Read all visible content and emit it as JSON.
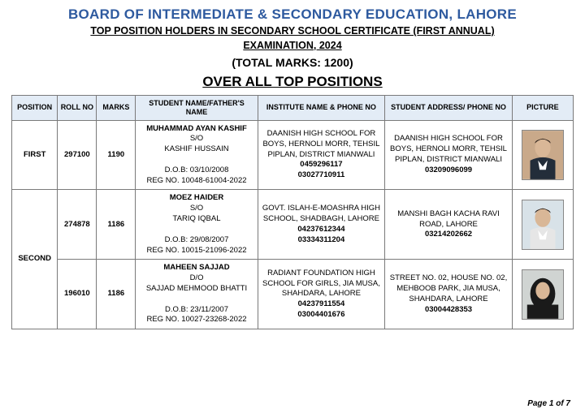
{
  "header": {
    "board_title": "BOARD OF INTERMEDIATE & SECONDARY EDUCATION, LAHORE",
    "sub_title_line1": "TOP POSITION HOLDERS IN SECONDARY SCHOOL CERTIFICATE (FIRST ANNUAL)",
    "sub_title_line2": "EXAMINATION, 2024",
    "total_marks": "(TOTAL MARKS: 1200)",
    "section_title": "OVER ALL TOP POSITIONS"
  },
  "table": {
    "headers": {
      "position": "POSITION",
      "roll_no": "ROLL NO",
      "marks": "MARKS",
      "name": "STUDENT NAME/FATHER'S NAME",
      "institute": "INSTITUTE NAME & PHONE NO",
      "address": "STUDENT ADDRESS/ PHONE NO",
      "picture": "PICTURE"
    },
    "rows": [
      {
        "position": "FIRST",
        "roll_no": "297100",
        "marks": "1190",
        "student_name": "MUHAMMAD AYAN KASHIF",
        "relation": "S/O",
        "father_name": "KASHIF HUSSAIN",
        "dob": "D.O.B: 03/10/2008",
        "reg": "REG NO. 10048-61004-2022",
        "institute": "DAANISH HIGH SCHOOL FOR BOYS, HERNOLI MORR, TEHSIL PIPLAN, DISTRICT MIANWALI",
        "inst_phone1": "0459296117",
        "inst_phone2": "03027710911",
        "address": "DAANISH HIGH SCHOOL FOR BOYS, HERNOLI MORR, TEHSIL PIPLAN, DISTRICT MIANWALI",
        "addr_phone": "03209096099",
        "photo_bg": "#c9a98a",
        "photo_top": "#232d3a"
      },
      {
        "position": "SECOND",
        "roll_no": "274878",
        "marks": "1186",
        "student_name": "MOEZ HAIDER",
        "relation": "S/O",
        "father_name": "TARIQ IQBAL",
        "dob": "D.O.B: 29/08/2007",
        "reg": "REG NO. 10015-21096-2022",
        "institute": "GOVT. ISLAH-E-MOASHRA HIGH SCHOOL, SHADBAGH, LAHORE",
        "inst_phone1": "04237612344",
        "inst_phone2": "03334311204",
        "address": "MANSHI BAGH KACHA RAVI ROAD, LAHORE",
        "addr_phone": "03214202662",
        "photo_bg": "#d8e2e8",
        "photo_top": "#e6e6e6"
      },
      {
        "position": "SECOND",
        "roll_no": "196010",
        "marks": "1186",
        "student_name": "MAHEEN SAJJAD",
        "relation": "D/O",
        "father_name": "SAJJAD MEHMOOD BHATTI",
        "dob": "D.O.B: 23/11/2007",
        "reg": "REG NO. 10027-23268-2022",
        "institute": "RADIANT FOUNDATION HIGH SCHOOL FOR GIRLS, JIA MUSA, SHAHDARA, LAHORE",
        "inst_phone1": "04237911554",
        "inst_phone2": "03004401676",
        "address": "STREET NO. 02, HOUSE NO. 02, MEHBOOB PARK, JIA MUSA, SHAHDARA, LAHORE",
        "addr_phone": "03004428353",
        "photo_bg": "#d0d4d2",
        "photo_top": "#1a1a1a",
        "hijab": true
      }
    ]
  },
  "footer": "Page 1 of 7",
  "colors": {
    "board_title": "#2e5a9f",
    "header_bg": "#e3ecf6",
    "border": "#7a7a7a"
  }
}
